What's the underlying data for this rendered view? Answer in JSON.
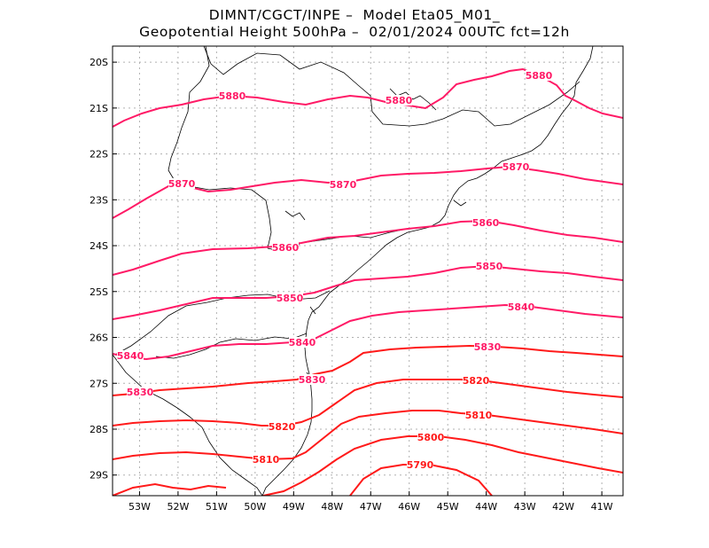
{
  "header": {
    "title_line1": "DIMNT/CGCT/INPE –  Model Eta05_M01_",
    "title_line2": "Geopotential Height 500hPa –  02/01/2024 00UTC fct=12h"
  },
  "colors": {
    "high_contours": "#ff1a66",
    "low_contours": "#ff1a1a",
    "coastline": "#000000",
    "grid": "#b0b0b0"
  },
  "map": {
    "lat_range": [
      -29.45,
      -19.65
    ],
    "lon_range": [
      -53.7,
      -40.45
    ],
    "lat_ticks": [
      "20S",
      "21S",
      "22S",
      "23S",
      "24S",
      "25S",
      "26S",
      "27S",
      "28S",
      "29S"
    ],
    "lon_ticks": [
      "53W",
      "52W",
      "51W",
      "50W",
      "49W",
      "48W",
      "47W",
      "46W",
      "45W",
      "44W",
      "43W",
      "42W",
      "41W"
    ]
  },
  "contours": [
    {
      "value": "5880",
      "labels": [
        "5880",
        "5880",
        "5880"
      ]
    },
    {
      "value": "5870",
      "labels": [
        "5870",
        "5870",
        "5870"
      ]
    },
    {
      "value": "5860",
      "labels": [
        "5860",
        "5860"
      ]
    },
    {
      "value": "5850",
      "labels": [
        "5850",
        "5850"
      ]
    },
    {
      "value": "5840",
      "labels": [
        "5840",
        "5840",
        "5840"
      ]
    },
    {
      "value": "5830",
      "labels": [
        "5830",
        "5830",
        "5830"
      ]
    },
    {
      "value": "5820",
      "labels": [
        "5820",
        "5820"
      ]
    },
    {
      "value": "5810",
      "labels": [
        "5810",
        "5810"
      ]
    },
    {
      "value": "5800",
      "labels": [
        "5800"
      ]
    },
    {
      "value": "5790",
      "labels": [
        "5790"
      ]
    }
  ]
}
